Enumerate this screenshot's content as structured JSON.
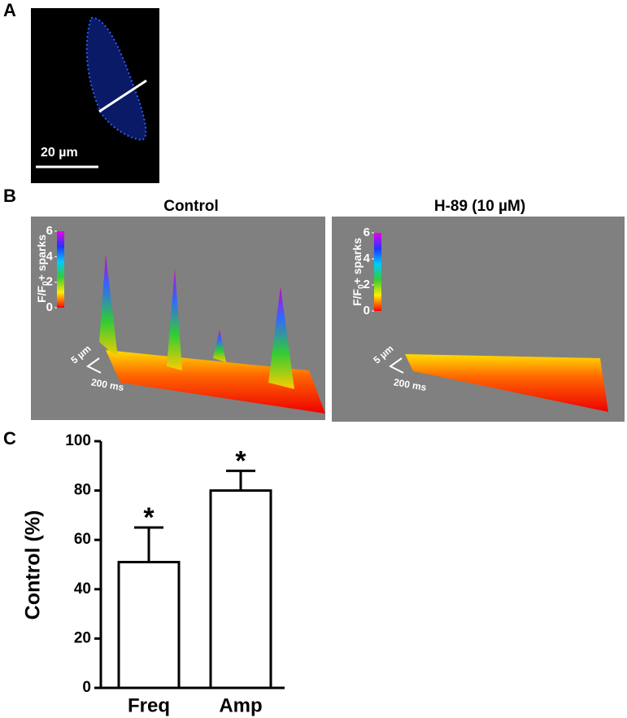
{
  "panel_labels": [
    "A",
    "B",
    "C"
  ],
  "image_a": {
    "scale_bar": "20 µm"
  },
  "image_b": [
    {
      "title": "Control",
      "colorbar_label": [
        "F/F",
        "0",
        "+ sparks"
      ],
      "colorbar_ticks": [
        0,
        2,
        4,
        6
      ],
      "colorbar_lim": [
        0,
        6
      ],
      "scale_y": "5 µm",
      "scale_x": "200 ms"
    },
    {
      "title": "H-89 (10 µM)",
      "colorbar_label": [
        "F/F",
        "0",
        "+ sparks"
      ],
      "colorbar_ticks": [
        0,
        2,
        4,
        6
      ],
      "colorbar_lim": [
        0,
        6
      ],
      "scale_y": "5 µm",
      "scale_x": "200 ms"
    }
  ],
  "chart_data": {
    "type": "bar",
    "ylabel": "Control (%)",
    "categories": [
      "Freq",
      "Amp"
    ],
    "values": [
      51,
      80
    ],
    "errors": [
      14,
      8
    ],
    "annotations": [
      "*",
      "*"
    ],
    "color": "#ffffff",
    "ylim": [
      0,
      100
    ],
    "yticks": [
      0,
      20,
      40,
      60,
      80,
      100
    ]
  }
}
